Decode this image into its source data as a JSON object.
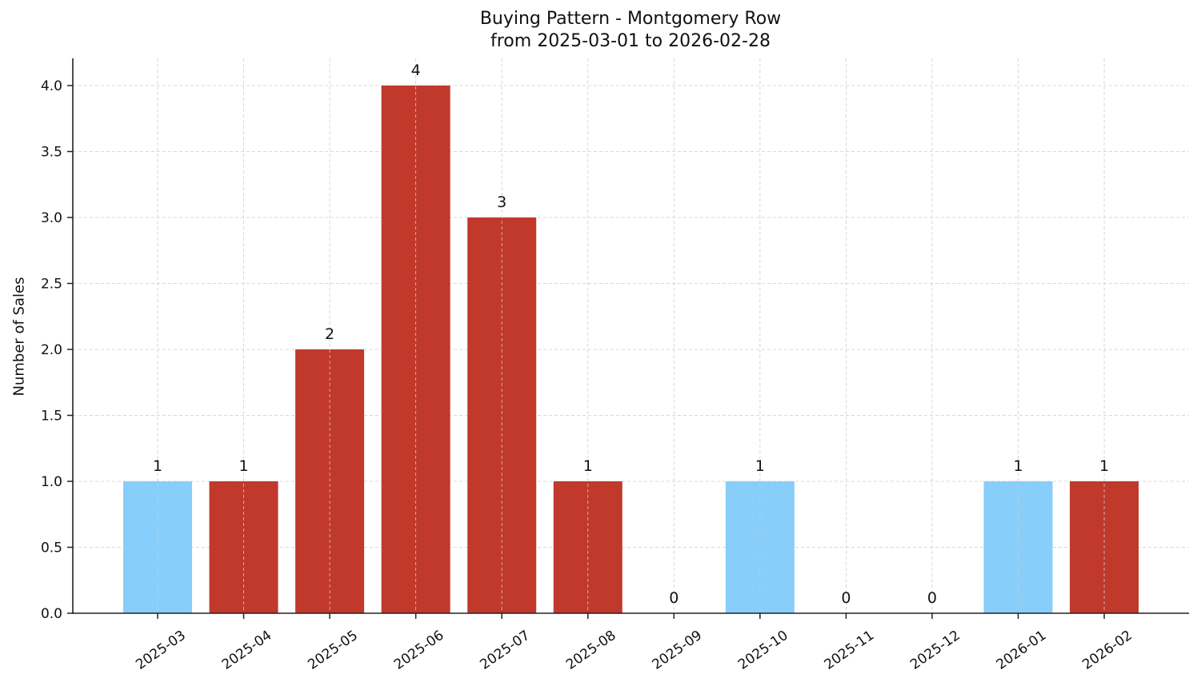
{
  "chart_data": {
    "type": "bar",
    "title": "Buying Pattern - Montgomery Row",
    "subtitle": "from 2025-03-01 to 2026-02-28",
    "xlabel": "",
    "ylabel": "Number of Sales",
    "ylim": [
      0,
      4.2
    ],
    "yticks": [
      "0.0",
      "0.5",
      "1.0",
      "1.5",
      "2.0",
      "2.5",
      "3.0",
      "3.5",
      "4.0"
    ],
    "grid": true,
    "legend": null,
    "categories": [
      "2025-03",
      "2025-04",
      "2025-05",
      "2025-06",
      "2025-07",
      "2025-08",
      "2025-09",
      "2025-10",
      "2025-11",
      "2025-12",
      "2026-01",
      "2026-02"
    ],
    "values": [
      1,
      1,
      2,
      4,
      3,
      1,
      0,
      1,
      0,
      0,
      1,
      1
    ],
    "bar_colors": [
      "#87CEFA",
      "#C0392B",
      "#C0392B",
      "#C0392B",
      "#C0392B",
      "#C0392B",
      "#87CEFA",
      "#87CEFA",
      "#87CEFA",
      "#87CEFA",
      "#87CEFA",
      "#C0392B"
    ],
    "data_labels": [
      "1",
      "1",
      "2",
      "4",
      "3",
      "1",
      "0",
      "1",
      "0",
      "0",
      "1",
      "1"
    ]
  },
  "colors": {
    "high": "#C0392B",
    "low": "#87CEFA",
    "grid": "#cccccc",
    "axis": "#222222"
  }
}
